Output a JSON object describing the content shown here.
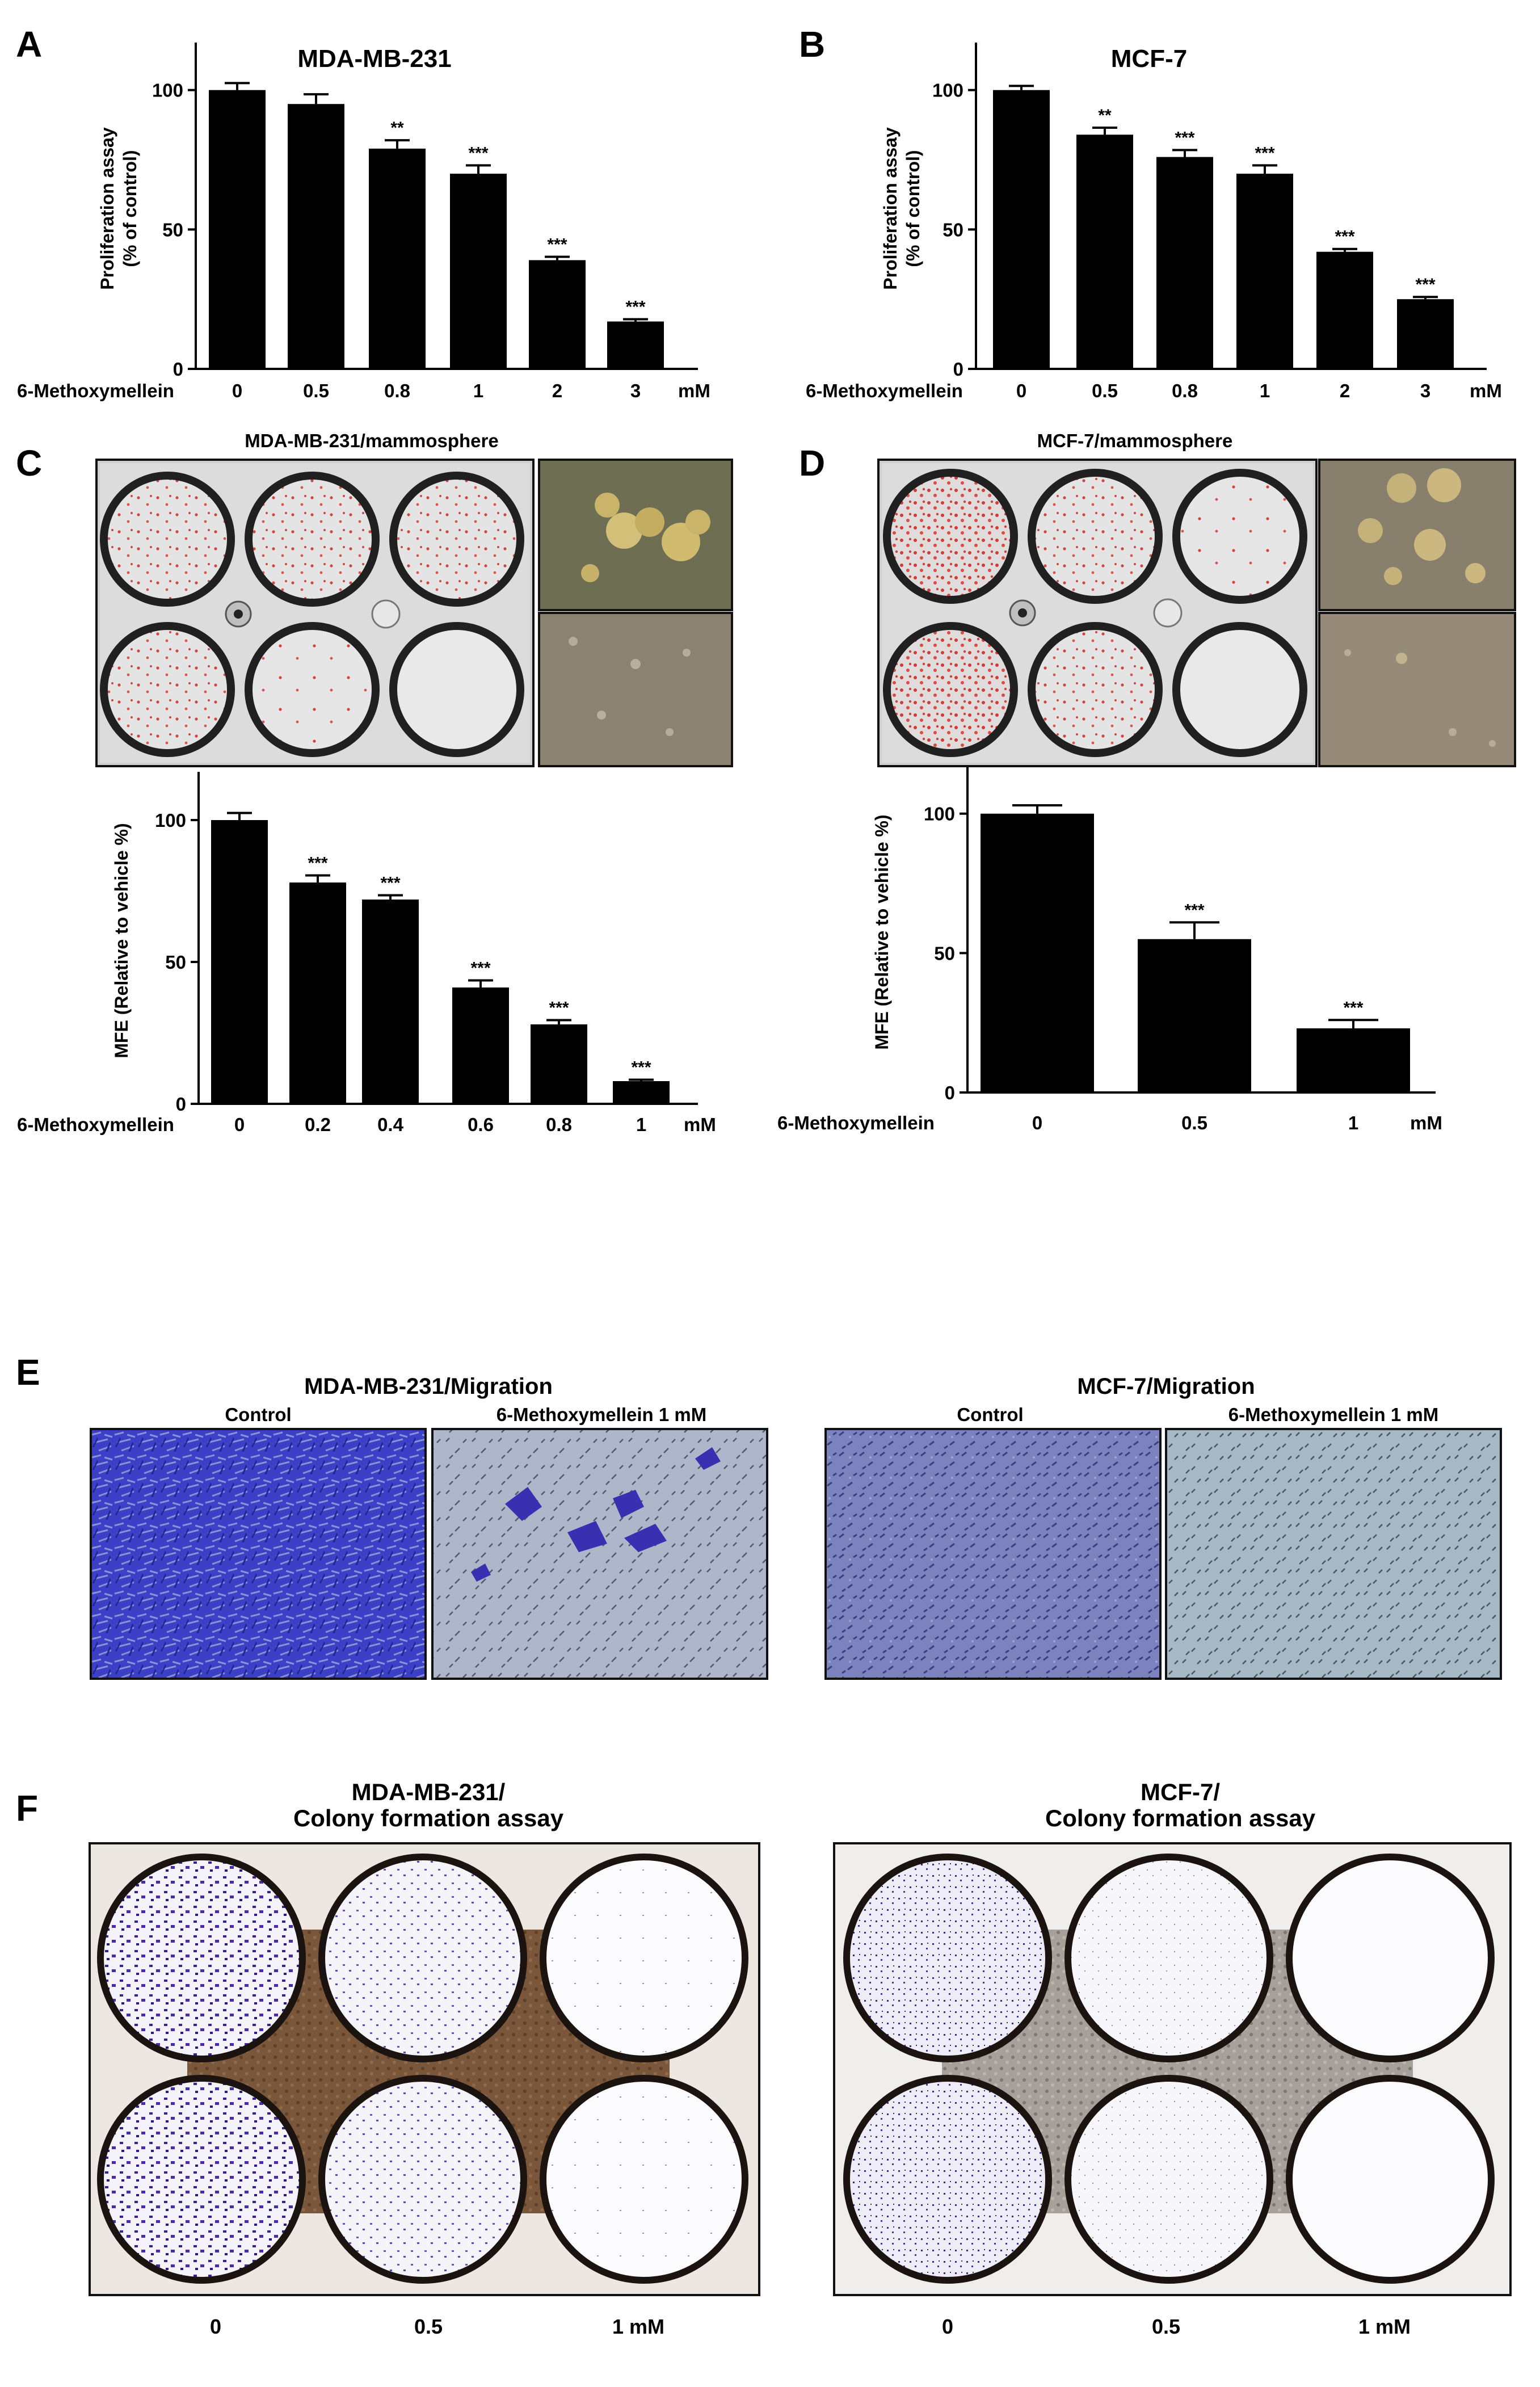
{
  "panels": {
    "A": {
      "letter": "A",
      "title": "MDA-MB-231"
    },
    "B": {
      "letter": "B",
      "title": "MCF-7"
    },
    "C": {
      "letter": "C",
      "title": "MDA-MB-231/mammosphere"
    },
    "D": {
      "letter": "D",
      "title": "MCF-7/mammosphere"
    },
    "E": {
      "letter": "E",
      "left_title": "MDA-MB-231/Migration",
      "right_title": "MCF-7/Migration",
      "label_control": "Control",
      "label_treated": "6-Methoxymellein 1 mM"
    },
    "F": {
      "letter": "F",
      "left_title_line1": "MDA-MB-231/",
      "left_title_line2": "Colony formation assay",
      "right_title_line1": "MCF-7/",
      "right_title_line2": "Colony formation assay",
      "left_x_labels": [
        "0",
        "0.5",
        "1 mM"
      ],
      "right_x_labels": [
        "0",
        "0.5",
        "1 mM"
      ]
    }
  },
  "chart_data": [
    {
      "panel": "A",
      "type": "bar",
      "title": "MDA-MB-231",
      "ylabel": "Proliferation assay\n(% of control)",
      "xlabel": "6-Methoxymellein",
      "unit": "mM",
      "categories": [
        "0",
        "0.5",
        "0.8",
        "1",
        "2",
        "3"
      ],
      "values": [
        100,
        95,
        79,
        70,
        39,
        17
      ],
      "errors": [
        2.5,
        3.5,
        3,
        3,
        1.2,
        0.8
      ],
      "significance": [
        "",
        "",
        "**",
        "***",
        "***",
        "***"
      ],
      "yticks": [
        0,
        50,
        100
      ],
      "ylim": [
        0,
        115
      ]
    },
    {
      "panel": "B",
      "type": "bar",
      "title": "MCF-7",
      "ylabel": "Proliferation assay\n(% of control)",
      "xlabel": "6-Methoxymellein",
      "unit": "mM",
      "categories": [
        "0",
        "0.5",
        "0.8",
        "1",
        "2",
        "3"
      ],
      "values": [
        100,
        84,
        76,
        70,
        42,
        25
      ],
      "errors": [
        1.5,
        2.5,
        2.5,
        3,
        1,
        0.8
      ],
      "significance": [
        "",
        "**",
        "***",
        "***",
        "***",
        "***"
      ],
      "yticks": [
        0,
        50,
        100
      ],
      "ylim": [
        0,
        115
      ]
    },
    {
      "panel": "C",
      "type": "bar",
      "ylabel": "MFE (Relative to vehicle %)",
      "xlabel": "6-Methoxymellein",
      "unit": "mM",
      "categories": [
        "0",
        "0.2",
        "0.4",
        "0.6",
        "0.8",
        "1"
      ],
      "values": [
        100,
        78,
        72,
        41,
        28,
        8
      ],
      "errors": [
        2.5,
        2.5,
        1.5,
        2.5,
        1.5,
        0.5
      ],
      "significance": [
        "",
        "***",
        "***",
        "***",
        "***",
        "***"
      ],
      "yticks": [
        0,
        50,
        100
      ],
      "ylim": [
        0,
        115
      ]
    },
    {
      "panel": "D",
      "type": "bar",
      "ylabel": "MFE (Relative to vehicle %)",
      "xlabel": "6-Methoxymellein",
      "unit": "mM",
      "categories": [
        "0",
        "0.5",
        "1"
      ],
      "values": [
        100,
        55,
        23
      ],
      "errors": [
        3,
        6,
        3
      ],
      "significance": [
        "",
        "***",
        "***"
      ],
      "yticks": [
        0,
        50,
        100
      ],
      "ylim": [
        0,
        115
      ]
    }
  ],
  "colors": {
    "bar": "#000000",
    "plate_bg": "#d9d9d9",
    "sphere_bg_green": "#6b6c4f",
    "sphere_bg_brown": "#8a8070",
    "migration_control_231": "#3b3fc2",
    "migration_treated_231": "#aab2c7",
    "migration_control_mcf7": "#6f76b8",
    "migration_treated_mcf7": "#9fb0be",
    "colony_purple": "#4b2ca3",
    "plate_brown": "#6e4a2e"
  }
}
